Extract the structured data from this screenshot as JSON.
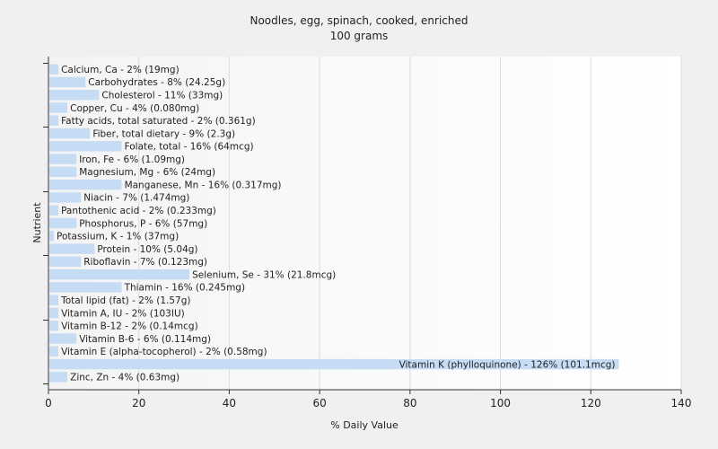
{
  "chart_data": {
    "type": "bar",
    "orientation": "horizontal",
    "title": "Noodles, egg, spinach, cooked, enriched",
    "subtitle": "100 grams",
    "xlabel": "% Daily Value",
    "ylabel": "Nutrient",
    "xlim": [
      0,
      140
    ],
    "xticks": [
      0,
      20,
      40,
      60,
      80,
      100,
      120,
      140
    ],
    "grid": true,
    "bar_color": "#c6dcf5",
    "categories": [
      "Calcium, Ca",
      "Carbohydrates",
      "Cholesterol",
      "Copper, Cu",
      "Fatty acids, total saturated",
      "Fiber, total dietary",
      "Folate, total",
      "Iron, Fe",
      "Magnesium, Mg",
      "Manganese, Mn",
      "Niacin",
      "Pantothenic acid",
      "Phosphorus, P",
      "Potassium, K",
      "Protein",
      "Riboflavin",
      "Selenium, Se",
      "Thiamin",
      "Total lipid (fat)",
      "Vitamin A, IU",
      "Vitamin B-12",
      "Vitamin B-6",
      "Vitamin E (alpha-tocopherol)",
      "Vitamin K (phylloquinone)",
      "Zinc, Zn"
    ],
    "values": [
      2,
      8,
      11,
      4,
      2,
      9,
      16,
      6,
      6,
      16,
      7,
      2,
      6,
      1,
      10,
      7,
      31,
      16,
      2,
      2,
      2,
      6,
      2,
      126,
      4
    ],
    "data_labels": [
      "Calcium, Ca - 2% (19mg)",
      "Carbohydrates - 8% (24.25g)",
      "Cholesterol - 11% (33mg)",
      "Copper, Cu - 4% (0.080mg)",
      "Fatty acids, total saturated - 2% (0.361g)",
      "Fiber, total dietary - 9% (2.3g)",
      "Folate, total - 16% (64mcg)",
      "Iron, Fe - 6% (1.09mg)",
      "Magnesium, Mg - 6% (24mg)",
      "Manganese, Mn - 16% (0.317mg)",
      "Niacin - 7% (1.474mg)",
      "Pantothenic acid - 2% (0.233mg)",
      "Phosphorus, P - 6% (57mg)",
      "Potassium, K - 1% (37mg)",
      "Protein - 10% (5.04g)",
      "Riboflavin - 7% (0.123mg)",
      "Selenium, Se - 31% (21.8mcg)",
      "Thiamin - 16% (0.245mg)",
      "Total lipid (fat) - 2% (1.57g)",
      "Vitamin A, IU - 2% (103IU)",
      "Vitamin B-12 - 2% (0.14mcg)",
      "Vitamin B-6 - 6% (0.114mg)",
      "Vitamin E (alpha-tocopherol) - 2% (0.58mg)",
      "Vitamin K (phylloquinone) - 126% (101.1mcg)",
      "Zinc, Zn - 4% (0.63mg)"
    ]
  }
}
